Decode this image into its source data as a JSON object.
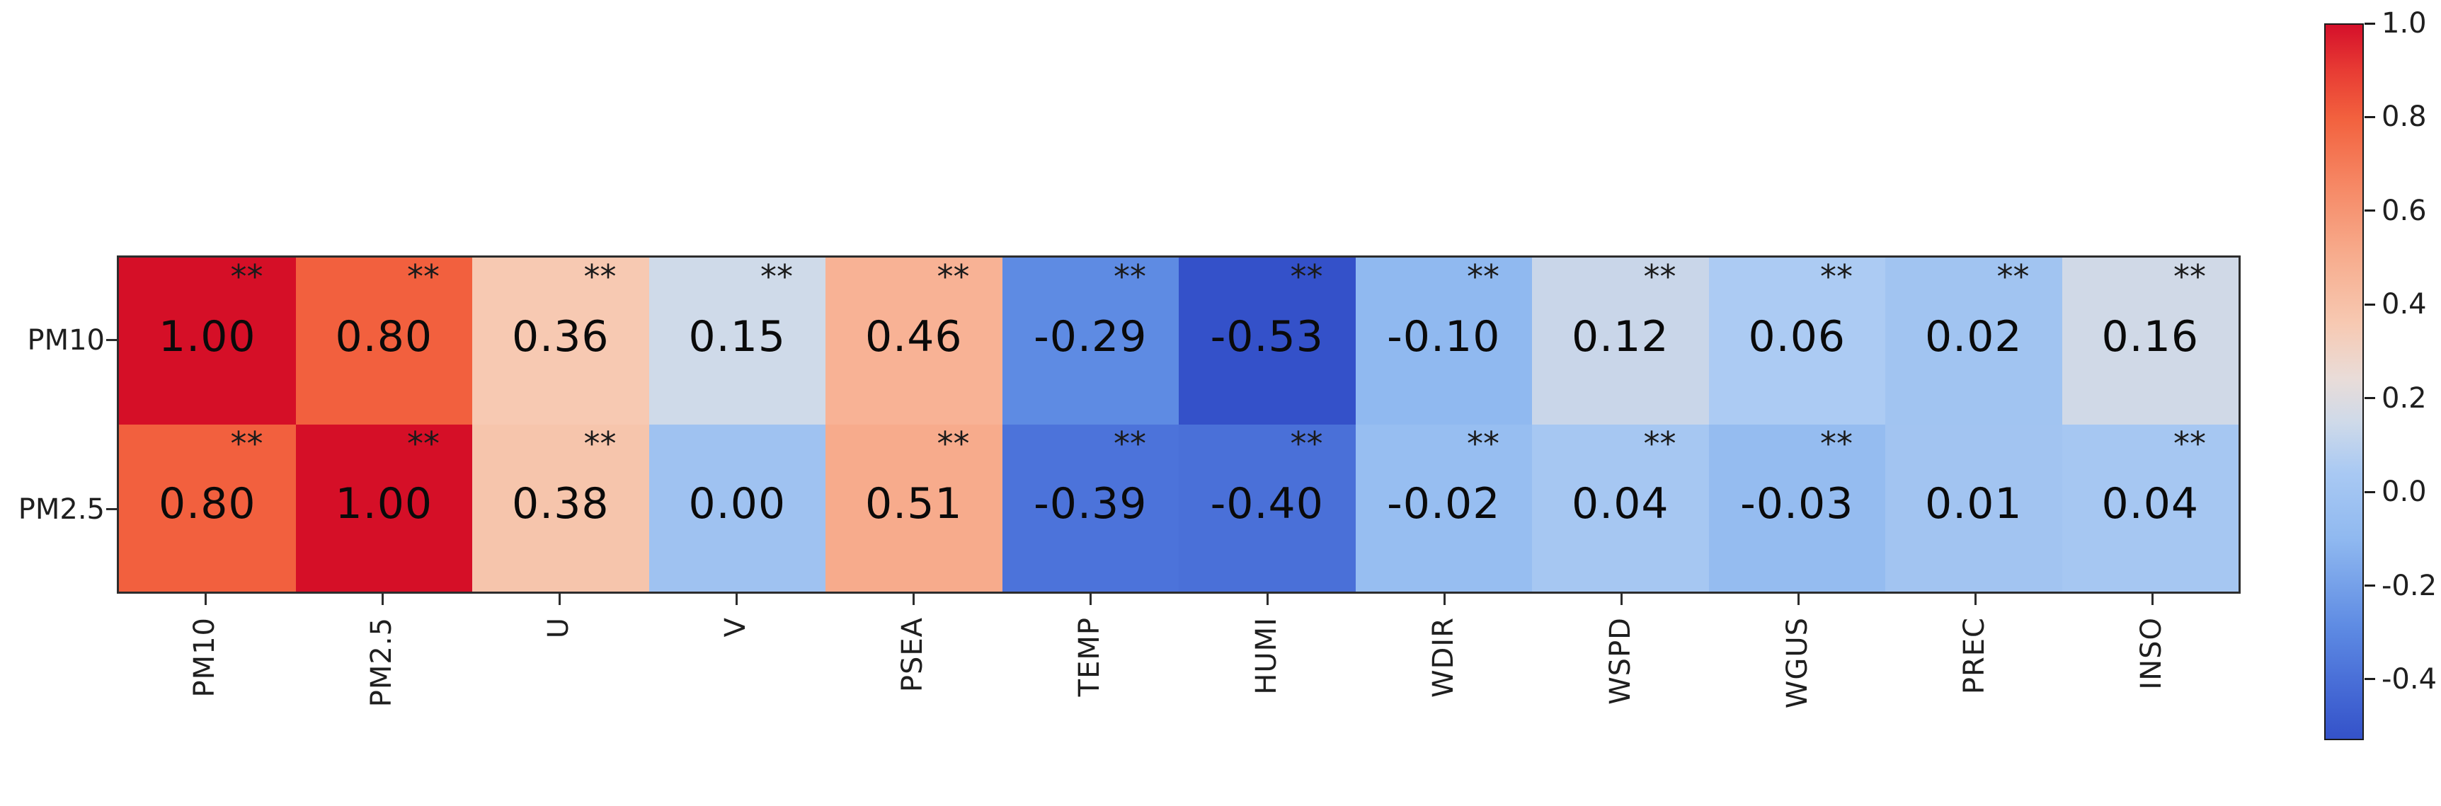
{
  "chart_data": {
    "type": "heatmap",
    "title": "",
    "rows": [
      "PM10",
      "PM2.5"
    ],
    "columns": [
      "PM10",
      "PM2.5",
      "U",
      "V",
      "PSEA",
      "TEMP",
      "HUMI",
      "WDIR",
      "WSPD",
      "WGUS",
      "PREC",
      "INSO"
    ],
    "series": [
      {
        "name": "PM10",
        "values": [
          1.0,
          0.8,
          0.36,
          0.15,
          0.46,
          -0.29,
          -0.53,
          -0.1,
          0.12,
          0.06,
          0.02,
          0.16
        ],
        "labels": [
          "1.00",
          "0.80",
          "0.36",
          "0.15",
          "0.46",
          "-0.29",
          "-0.53",
          "-0.10",
          "0.12",
          "0.06",
          "0.02",
          "0.16"
        ],
        "significance": [
          "**",
          "**",
          "**",
          "**",
          "**",
          "**",
          "**",
          "**",
          "**",
          "**",
          "**",
          "**"
        ],
        "cell_colors": [
          "#d50f27",
          "#f2603e",
          "#f7c9b2",
          "#cfdae9",
          "#f8b295",
          "#5e8be3",
          "#3451c9",
          "#90b9f0",
          "#c9d6e9",
          "#accbf3",
          "#a1c4f1",
          "#d0d9e7"
        ]
      },
      {
        "name": "PM2.5",
        "values": [
          0.8,
          1.0,
          0.38,
          0.0,
          0.51,
          -0.39,
          -0.4,
          -0.02,
          0.04,
          -0.03,
          0.01,
          0.04
        ],
        "labels": [
          "0.80",
          "1.00",
          "0.38",
          "0.00",
          "0.51",
          "-0.39",
          "-0.40",
          "-0.02",
          "0.04",
          "-0.03",
          "0.01",
          "0.04"
        ],
        "significance": [
          "**",
          "**",
          "**",
          "",
          "**",
          "**",
          "**",
          "**",
          "**",
          "**",
          "",
          "**"
        ],
        "cell_colors": [
          "#f2603e",
          "#d50f27",
          "#f6c5ac",
          "#9fc2f1",
          "#f7ab8c",
          "#4c73da",
          "#4a70d8",
          "#97bef1",
          "#a6c7f2",
          "#95bcf0",
          "#a2c4f1",
          "#a6c7f2"
        ]
      }
    ],
    "colorbar": {
      "vmin": -0.53,
      "vmax": 1.0,
      "tick_labels": [
        "1.0",
        "0.8",
        "0.6",
        "0.4",
        "0.2",
        "0.0",
        "-0.2",
        "-0.4"
      ],
      "tick_values": [
        1.0,
        0.8,
        0.6,
        0.4,
        0.2,
        0.0,
        -0.2,
        -0.4
      ],
      "gradient": [
        {
          "pos": 0.0,
          "color": "#d5102a"
        },
        {
          "pos": 0.065,
          "color": "#e83c34"
        },
        {
          "pos": 0.131,
          "color": "#f2613e"
        },
        {
          "pos": 0.23,
          "color": "#f68a67"
        },
        {
          "pos": 0.32,
          "color": "#f7ab8c"
        },
        {
          "pos": 0.418,
          "color": "#f7c9b2"
        },
        {
          "pos": 0.495,
          "color": "#e9dcd8"
        },
        {
          "pos": 0.556,
          "color": "#cfdae9"
        },
        {
          "pos": 0.627,
          "color": "#a9c9f3"
        },
        {
          "pos": 0.719,
          "color": "#90b9f0"
        },
        {
          "pos": 0.843,
          "color": "#5e8be3"
        },
        {
          "pos": 0.915,
          "color": "#4a70d8"
        },
        {
          "pos": 1.0,
          "color": "#3452c9"
        }
      ]
    },
    "colors": {
      "background": "#ffffff",
      "spine": "#2d2d2d",
      "value_text": "#0a0a0a",
      "tick_text": "#1f1f1f"
    },
    "layout": {
      "grid": "off",
      "legend": "colorbar-right",
      "x_tick_rotation_deg": 90
    }
  }
}
